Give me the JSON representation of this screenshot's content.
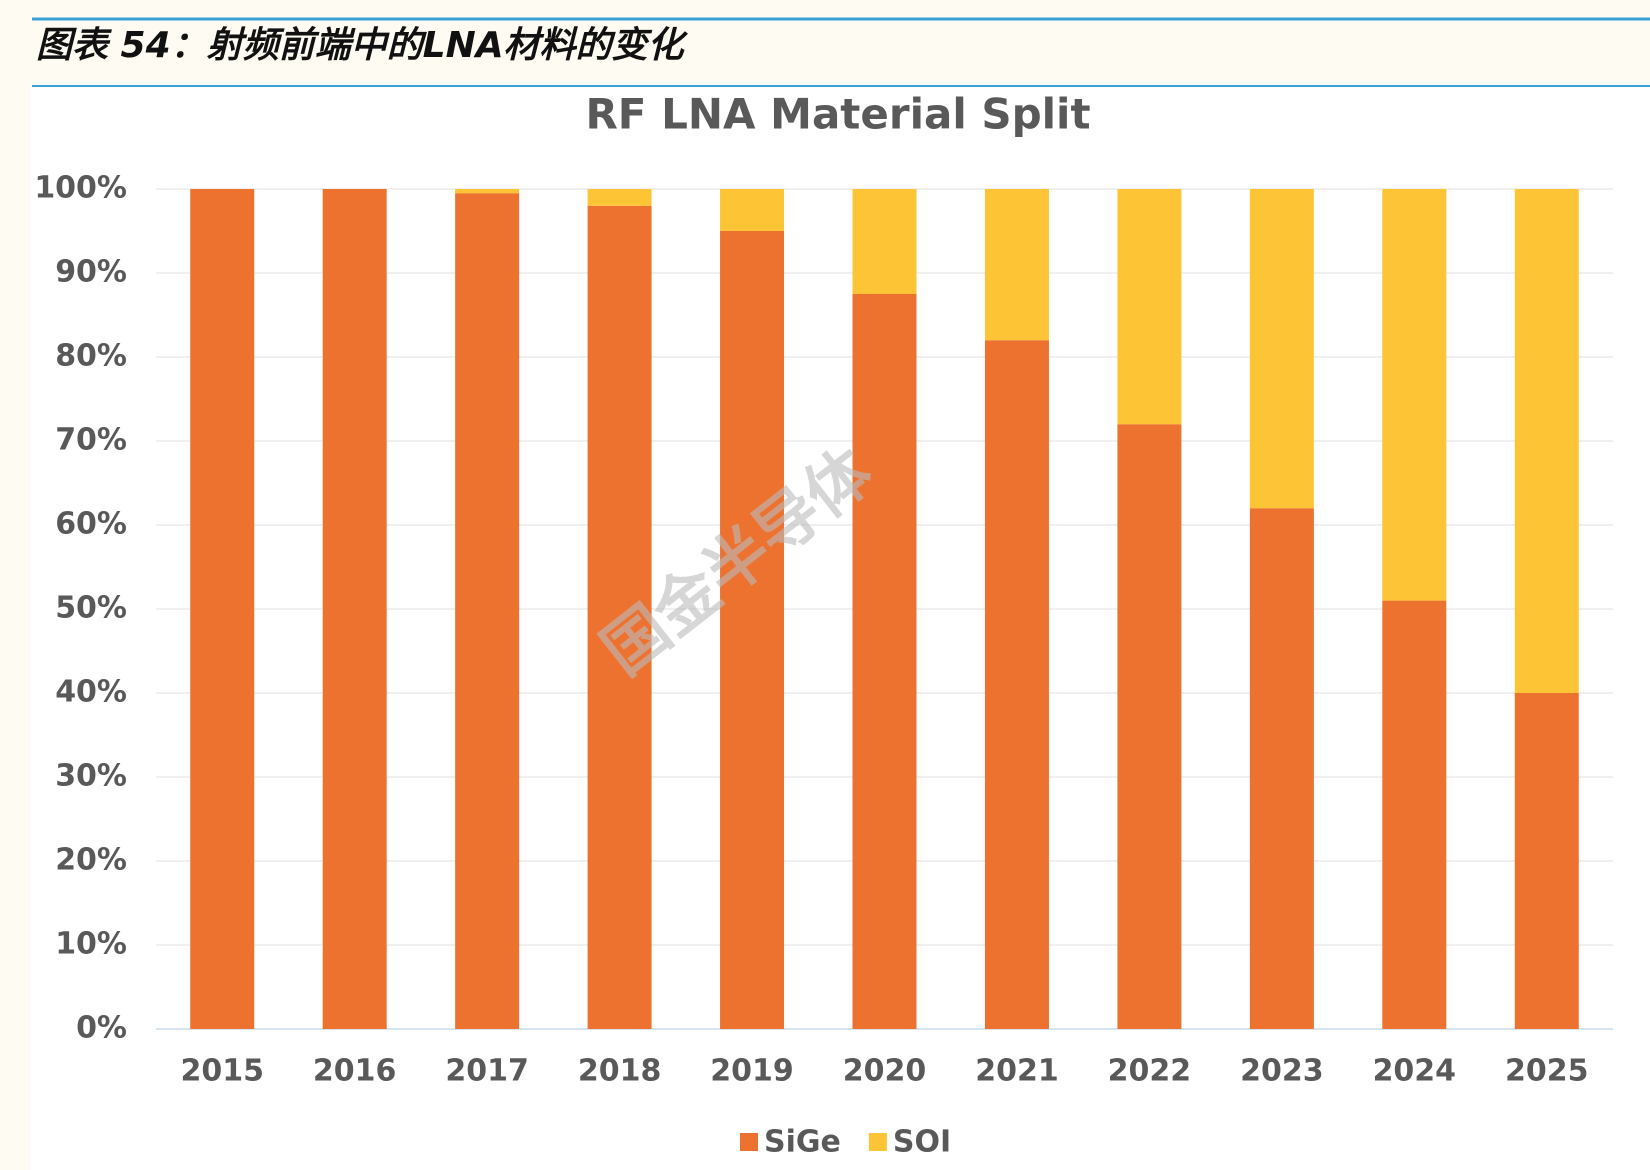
{
  "header": {
    "title": "图表 54：射频前端中的LNA材料的变化"
  },
  "chart_data": {
    "type": "stacked-bar",
    "title": "RF LNA Material Split",
    "watermark": "国金半导体",
    "categories": [
      "2015",
      "2016",
      "2017",
      "2018",
      "2019",
      "2020",
      "2021",
      "2022",
      "2023",
      "2024",
      "2025"
    ],
    "series": [
      {
        "name": "SiGe",
        "color": "#ed7230",
        "values": [
          100,
          100,
          99.5,
          98,
          95,
          87.5,
          82,
          72,
          62,
          51,
          40
        ]
      },
      {
        "name": "SOI",
        "color": "#fdc436",
        "values": [
          0,
          0,
          0.5,
          2,
          5,
          12.5,
          18,
          28,
          38,
          49,
          60
        ]
      }
    ],
    "ylim": [
      0,
      100
    ],
    "yticks": [
      {
        "value": 0,
        "label": "0%"
      },
      {
        "value": 10,
        "label": "10%"
      },
      {
        "value": 20,
        "label": "20%"
      },
      {
        "value": 30,
        "label": "30%"
      },
      {
        "value": 40,
        "label": "40%"
      },
      {
        "value": 50,
        "label": "50%"
      },
      {
        "value": 60,
        "label": "60%"
      },
      {
        "value": 70,
        "label": "70%"
      },
      {
        "value": 80,
        "label": "80%"
      },
      {
        "value": 90,
        "label": "90%"
      },
      {
        "value": 100,
        "label": "100%"
      }
    ],
    "grid": true,
    "legend": "bottom"
  }
}
